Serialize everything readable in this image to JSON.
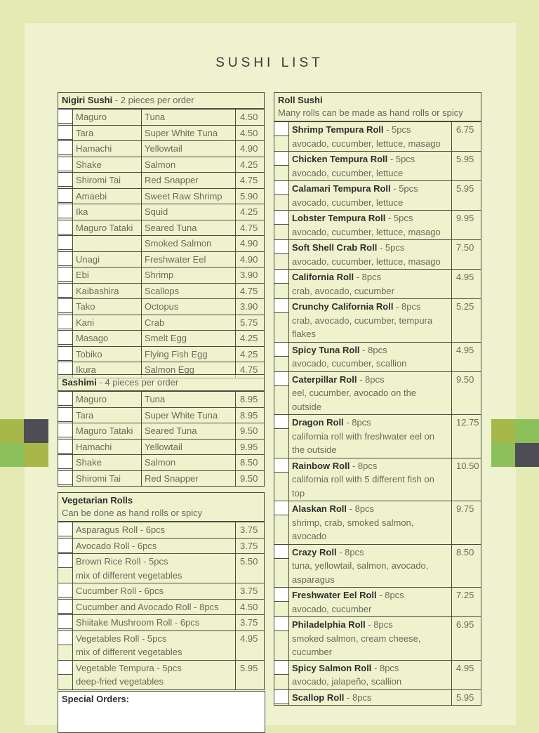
{
  "title": "SUSHI LIST",
  "colors": {
    "background": "#e3eab4",
    "panel": "#eef2ce",
    "border": "#4a4a42",
    "deco_olive": "#a6b84a",
    "deco_green": "#8cc05a",
    "deco_dark": "#4e4d55"
  },
  "nigiri": {
    "title": "Nigiri Sushi",
    "subtitle": " - 2 pieces per order",
    "items": [
      [
        "Maguro",
        "Tuna",
        "4.50"
      ],
      [
        "Tara",
        "Super White Tuna",
        "4.50"
      ],
      [
        "Hamachi",
        "Yellowtail",
        "4.90"
      ],
      [
        "Shake",
        "Salmon",
        "4.25"
      ],
      [
        "Shiromi Tai",
        "Red Snapper",
        "4.75"
      ],
      [
        "Amaebi",
        "Sweet Raw Shrimp",
        "5.90"
      ],
      [
        "Ika",
        "Squid",
        "4.25"
      ],
      [
        "Maguro Tataki",
        "Seared Tuna",
        "4.75"
      ],
      [
        "",
        "Smoked Salmon",
        "4.90"
      ],
      [
        "Unagi",
        "Freshwater Eel",
        "4.90"
      ],
      [
        "Ebi",
        "Shrimp",
        "3.90"
      ],
      [
        "Kaibashira",
        "Scallops",
        "4.75"
      ],
      [
        "Tako",
        "Octopus",
        "3.90"
      ],
      [
        "Kani",
        "Crab",
        "5.75"
      ],
      [
        "Masago",
        "Smelt Egg",
        "4.25"
      ],
      [
        "Tobiko",
        "Flying Fish Egg",
        "4.25"
      ],
      [
        "Ikura",
        "Salmon Egg",
        "4.75"
      ]
    ]
  },
  "sashimi": {
    "title": "Sashimi",
    "subtitle": " - 4 pieces per order",
    "items": [
      [
        "Maguro",
        "Tuna",
        "8.95"
      ],
      [
        "Tara",
        "Super White Tuna",
        "8.95"
      ],
      [
        "Maguro Tataki",
        "Seared Tuna",
        "9.50"
      ],
      [
        "Hamachi",
        "Yellowtail",
        "9.95"
      ],
      [
        "Shake",
        "Salmon",
        "8.50"
      ],
      [
        "Shiromi Tai",
        "Red Snapper",
        "9.50"
      ]
    ]
  },
  "vegetarian": {
    "title": "Vegetarian Rolls",
    "subtitle": "Can be done as hand rolls or spicy",
    "items": [
      {
        "name": "Asparagus Roll - 6pcs",
        "desc": "",
        "price": "3.75"
      },
      {
        "name": "Avocado Roll - 6pcs",
        "desc": "",
        "price": "3.75"
      },
      {
        "name": "Brown Rice Roll - 5pcs",
        "desc": "mix of different vegetables",
        "price": "5.50"
      },
      {
        "name": "Cucumber Roll - 6pcs",
        "desc": "",
        "price": "3.75"
      },
      {
        "name": "Cucumber and Avocado Roll - 8pcs",
        "desc": "",
        "price": "4.50"
      },
      {
        "name": "Shiitake Mushroom Roll - 6pcs",
        "desc": "",
        "price": "3.75"
      },
      {
        "name": "Vegetables Roll - 5pcs",
        "desc": "mix of different vegetables",
        "price": "4.95"
      },
      {
        "name": "Vegetable Tempura - 5pcs",
        "desc": "deep-fried vegetables",
        "price": "5.95"
      }
    ]
  },
  "special_orders": {
    "label": "Special Orders:"
  },
  "rolls": {
    "title": "Roll Sushi",
    "subtitle": "Many rolls can be made as hand rolls or spicy",
    "items": [
      {
        "name": "Shrimp Tempura Roll",
        "pcs": " - 5pcs",
        "desc": "avocado, cucumber, lettuce, masago",
        "price": "6.75"
      },
      {
        "name": "Chicken Tempura Roll",
        "pcs": " - 5pcs",
        "desc": "avocado, cucumber, lettuce",
        "price": "5.95"
      },
      {
        "name": "Calamari Tempura Roll",
        "pcs": " - 5pcs",
        "desc": "avocado, cucumber, lettuce",
        "price": "5.95"
      },
      {
        "name": "Lobster Tempura Roll",
        "pcs": " - 5pcs",
        "desc": "avocado, cucumber, lettuce, masago",
        "price": "9.95"
      },
      {
        "name": "Soft Shell Crab Roll",
        "pcs": " - 5pcs",
        "desc": "avocado, cucumber, lettuce, masago",
        "price": "7.50"
      },
      {
        "name": "California Roll",
        "pcs": " - 8pcs",
        "desc": "crab, avocado, cucumber",
        "price": "4.95"
      },
      {
        "name": "Crunchy California Roll",
        "pcs": " - 8pcs",
        "desc": "crab, avocado, cucumber, tempura flakes",
        "price": "5.25"
      },
      {
        "name": "Spicy Tuna Roll",
        "pcs": " - 8pcs",
        "desc": "avocado, cucumber, scallion",
        "price": "4.95"
      },
      {
        "name": "Caterpillar Roll",
        "pcs": " - 8pcs",
        "desc": "eel, cucumber, avocado on the outside",
        "price": "9.50"
      },
      {
        "name": "Dragon Roll",
        "pcs": " - 8pcs",
        "desc": "california roll with freshwater eel on the outside",
        "price": "12.75"
      },
      {
        "name": "Rainbow Roll",
        "pcs": " - 8pcs",
        "desc": "california roll with 5 different fish on top",
        "price": "10.50"
      },
      {
        "name": "Alaskan Roll",
        "pcs": " - 8pcs",
        "desc": "shrimp, crab, smoked salmon, avocado",
        "price": "9.75"
      },
      {
        "name": "Crazy Roll",
        "pcs": " - 8pcs",
        "desc": "tuna, yellowtail, salmon, avocado, asparagus",
        "price": "8.50"
      },
      {
        "name": "Freshwater Eel Roll",
        "pcs": " - 8pcs",
        "desc": "avocado, cucumber",
        "price": "7.25"
      },
      {
        "name": "Philadelphia Roll",
        "pcs": " - 8pcs",
        "desc": "smoked salmon, cream cheese, cucumber",
        "price": "6.95"
      },
      {
        "name": "Spicy Salmon Roll",
        "pcs": " - 8pcs",
        "desc": "avocado, jalapeño, scallion",
        "price": "4.95"
      },
      {
        "name": "Scallop Roll",
        "pcs": " - 8pcs",
        "desc": "",
        "price": "5.95"
      }
    ]
  }
}
